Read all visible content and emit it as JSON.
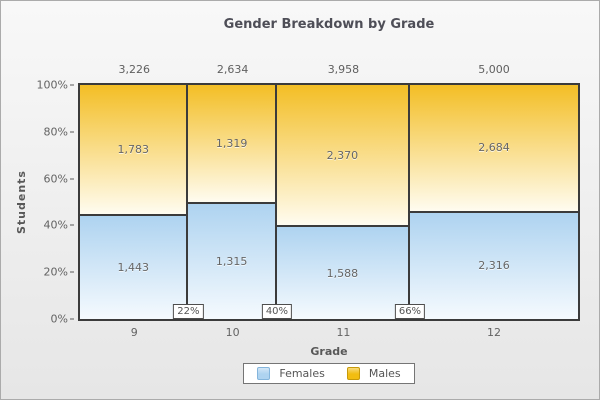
{
  "title": "Gender Breakdown by Grade",
  "y_axis": {
    "label": "Students",
    "ticks": [
      "100%",
      "80%",
      "60%",
      "40%",
      "20%",
      "0%"
    ]
  },
  "x_axis": {
    "label": "Grade"
  },
  "legend": {
    "items": [
      {
        "label": "Females",
        "color": "#AED3F0",
        "border": "#84B5DC"
      },
      {
        "label": "Males",
        "color": "#F2BD11",
        "border": "#C79A0A"
      }
    ]
  },
  "chart_data": {
    "type": "mosaic",
    "title": "Gender Breakdown by Grade",
    "xlabel": "Grade",
    "ylabel": "Students",
    "ylim_pct": [
      0,
      100
    ],
    "categories": [
      "9",
      "10",
      "11",
      "12"
    ],
    "column_totals": [
      3226,
      2634,
      3958,
      5000
    ],
    "column_total_labels": [
      "3,226",
      "2,634",
      "3,958",
      "5,000"
    ],
    "series": [
      {
        "name": "Females",
        "values": [
          1443,
          1315,
          1588,
          2316
        ],
        "value_labels": [
          "1,443",
          "1,315",
          "1,588",
          "2,316"
        ]
      },
      {
        "name": "Males",
        "values": [
          1783,
          1319,
          2370,
          2684
        ],
        "value_labels": [
          "1,783",
          "1,319",
          "2,370",
          "2,684"
        ]
      }
    ],
    "cumulative_boundary_labels": [
      "22%",
      "40%",
      "66%"
    ],
    "colors": {
      "females_top": "#AED3F0",
      "females_bottom": "#F5FAFE",
      "males_top": "#F3BE25",
      "males_bottom": "#FFFCF0",
      "segment_border": "#3B3B3B"
    }
  }
}
